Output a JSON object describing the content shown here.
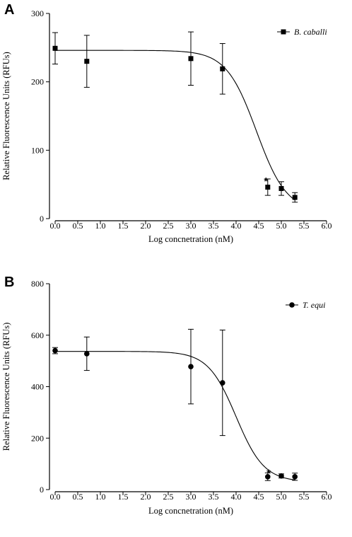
{
  "chart_data": [
    {
      "type": "scatter",
      "panel_label": "A",
      "xlabel": "Log concnetration (nM)",
      "ylabel": "Relative Fluorescence Units (RFUs)",
      "xlim": [
        0,
        6
      ],
      "ylim": [
        0,
        300
      ],
      "xticks": [
        "0.0",
        "0.5",
        "1.0",
        "1.5",
        "2.0",
        "2.5",
        "3.0",
        "3.5",
        "4.0",
        "4.5",
        "5.0",
        "5.5",
        "6.0"
      ],
      "yticks": [
        "0",
        "100",
        "200",
        "300"
      ],
      "legend": {
        "position": "top-right"
      },
      "series": [
        {
          "name": "B. caballi",
          "marker": "square",
          "x": [
            0.0,
            0.7,
            3.0,
            3.7,
            4.7,
            5.0,
            5.3
          ],
          "y": [
            249,
            230,
            234,
            219,
            46,
            44,
            31
          ],
          "err": [
            23,
            38,
            39,
            37,
            12,
            10,
            7
          ]
        }
      ],
      "fit": {
        "top": 246,
        "bottom": 10,
        "logIC50": 4.45,
        "hill": 1.3,
        "xmin": 0.0,
        "xmax": 5.3
      },
      "annotations": [
        {
          "text": "*",
          "x": 4.66,
          "y": 56
        }
      ]
    },
    {
      "type": "scatter",
      "panel_label": "B",
      "xlabel": "Log concnetration (nM)",
      "ylabel": "Relative Fluorescence Units (RFUs)",
      "xlim": [
        0,
        6
      ],
      "ylim": [
        0,
        800
      ],
      "xticks": [
        "0.0",
        "0.5",
        "1.0",
        "1.5",
        "2.0",
        "2.5",
        "3.0",
        "3.5",
        "4.0",
        "4.5",
        "5.0",
        "5.5",
        "6.0"
      ],
      "yticks": [
        "0",
        "200",
        "400",
        "600",
        "800"
      ],
      "legend": {
        "position": "top-right"
      },
      "series": [
        {
          "name": "T. equi",
          "marker": "circle",
          "x": [
            0.0,
            0.7,
            3.0,
            3.7,
            4.7,
            5.0,
            5.3
          ],
          "y": [
            540,
            528,
            478,
            415,
            50,
            53,
            50
          ],
          "err": [
            12,
            65,
            145,
            205,
            15,
            8,
            14
          ]
        }
      ],
      "fit": {
        "top": 537,
        "bottom": 30,
        "logIC50": 4.0,
        "hill": 1.4,
        "xmin": 0.0,
        "xmax": 5.3
      },
      "annotations": [
        {
          "text": "*",
          "x": 4.72,
          "y": 68
        }
      ]
    }
  ]
}
